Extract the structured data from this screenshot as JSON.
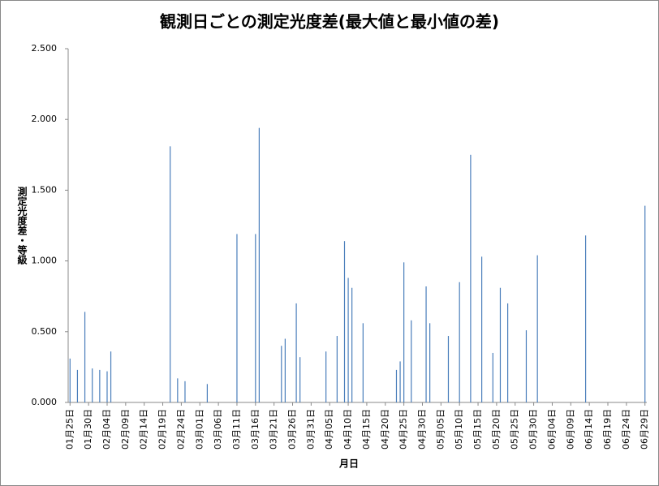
{
  "chart_data": {
    "type": "bar",
    "title": "観測日ごとの測定光度差(最大値と最小値の差)",
    "x_label": "月日",
    "y_label": "測定光度差・等級",
    "color": "#4a7ebb",
    "categories": [
      "01月25日",
      null,
      null,
      null,
      null,
      "01月30日",
      null,
      null,
      null,
      null,
      "02月04日",
      null,
      null,
      null,
      null,
      "02月09日",
      null,
      null,
      null,
      null,
      "02月14日",
      null,
      null,
      null,
      null,
      "02月19日",
      null,
      null,
      null,
      null,
      "02月24日",
      null,
      null,
      null,
      null,
      "03月01日",
      null,
      null,
      null,
      null,
      "03月06日",
      null,
      null,
      null,
      null,
      "03月11日",
      null,
      null,
      null,
      null,
      "03月16日",
      null,
      null,
      null,
      null,
      "03月21日",
      null,
      null,
      null,
      null,
      "03月26日",
      null,
      null,
      null,
      null,
      "03月31日",
      null,
      null,
      null,
      null,
      "04月05日",
      null,
      null,
      null,
      null,
      "04月10日",
      null,
      null,
      null,
      null,
      "04月15日",
      null,
      null,
      null,
      null,
      "04月20日",
      null,
      null,
      null,
      null,
      "04月25日",
      null,
      null,
      null,
      null,
      "04月30日",
      null,
      null,
      null,
      null,
      "05月05日",
      null,
      null,
      null,
      null,
      "05月10日",
      null,
      null,
      null,
      null,
      "05月15日",
      null,
      null,
      null,
      null,
      "05月20日",
      null,
      null,
      null,
      null,
      "05月25日",
      null,
      null,
      null,
      null,
      "05月30日",
      null,
      null,
      null,
      null,
      "06月04日",
      null,
      null,
      null,
      null,
      "06月09日",
      null,
      null,
      null,
      null,
      "06月14日",
      null,
      null,
      null,
      null,
      "06月19日",
      null,
      null,
      null,
      null,
      "06月24日",
      null,
      null,
      null,
      null,
      "06月29日"
    ],
    "values": [
      0.31,
      null,
      0.23,
      null,
      0.64,
      null,
      0.24,
      null,
      0.23,
      null,
      0.22,
      0.36,
      null,
      null,
      null,
      null,
      null,
      null,
      null,
      null,
      null,
      null,
      null,
      null,
      null,
      null,
      null,
      1.81,
      null,
      0.17,
      null,
      0.15,
      null,
      null,
      null,
      null,
      null,
      0.13,
      null,
      null,
      null,
      null,
      null,
      null,
      null,
      1.19,
      null,
      null,
      null,
      null,
      1.19,
      1.94,
      null,
      null,
      null,
      null,
      null,
      0.4,
      0.45,
      null,
      null,
      0.7,
      0.32,
      null,
      null,
      null,
      null,
      null,
      null,
      0.36,
      null,
      null,
      0.47,
      null,
      1.14,
      0.88,
      0.81,
      null,
      null,
      0.56,
      null,
      null,
      null,
      null,
      null,
      null,
      null,
      null,
      0.23,
      0.29,
      0.99,
      null,
      0.58,
      null,
      null,
      null,
      0.82,
      0.56,
      null,
      null,
      null,
      null,
      0.47,
      null,
      null,
      0.85,
      null,
      null,
      1.75,
      null,
      null,
      1.03,
      null,
      null,
      0.35,
      null,
      0.81,
      null,
      0.7,
      null,
      null,
      null,
      null,
      0.51,
      null,
      null,
      1.04,
      null,
      null,
      null,
      null,
      null,
      null,
      null,
      null,
      null,
      null,
      null,
      null,
      1.18,
      null,
      null,
      null,
      null,
      null,
      null,
      null,
      null,
      null,
      null,
      null,
      null,
      null,
      null,
      null,
      1.39
    ],
    "ylim": [
      0,
      2.5
    ],
    "yticks": [
      {
        "value": 0,
        "label": "0.000"
      },
      {
        "value": 0.5,
        "label": "0.500"
      },
      {
        "value": 1,
        "label": "1.000"
      },
      {
        "value": 1.5,
        "label": "1.500"
      },
      {
        "value": 2,
        "label": "2.000"
      },
      {
        "value": 2.5,
        "label": "2.500"
      }
    ],
    "grid": false
  }
}
